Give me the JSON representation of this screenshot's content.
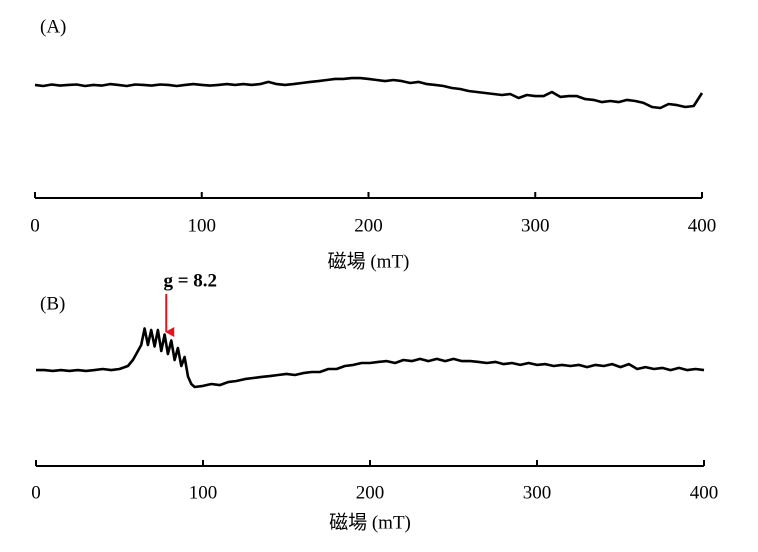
{
  "chart_data": [
    {
      "type": "line",
      "panel_label": "(A)",
      "xlabel": "磁場 (mT)",
      "xlim": [
        0,
        400
      ],
      "xticks": [
        0,
        100,
        200,
        300,
        400
      ],
      "ylim": [
        0,
        100
      ],
      "color": "#000000",
      "x": [
        0,
        5,
        10,
        15,
        20,
        25,
        30,
        35,
        40,
        45,
        50,
        55,
        60,
        65,
        70,
        75,
        80,
        85,
        90,
        95,
        100,
        105,
        110,
        115,
        120,
        125,
        130,
        135,
        140,
        145,
        150,
        155,
        160,
        165,
        170,
        175,
        180,
        185,
        190,
        195,
        200,
        205,
        210,
        215,
        220,
        225,
        230,
        235,
        240,
        245,
        250,
        255,
        260,
        265,
        270,
        275,
        280,
        285,
        290,
        295,
        300,
        305,
        310,
        315,
        320,
        325,
        330,
        335,
        340,
        345,
        350,
        355,
        360,
        365,
        370,
        375,
        380,
        385,
        390,
        395,
        400
      ],
      "values": [
        66.7,
        66,
        67,
        66.3,
        66.7,
        67,
        66,
        66.7,
        66.3,
        67.3,
        66.7,
        66,
        67,
        66.7,
        66.3,
        67,
        66.7,
        66,
        66.7,
        67.3,
        66.7,
        66.3,
        66.7,
        67.3,
        66.7,
        67.3,
        66.7,
        67.3,
        68.7,
        67.3,
        66.7,
        67.3,
        68,
        68.7,
        69.3,
        70,
        70.7,
        70.7,
        71.3,
        71.3,
        70.7,
        70,
        69.3,
        70,
        69.3,
        68,
        68.7,
        67.3,
        66.7,
        66,
        64.7,
        64,
        62.7,
        62,
        61.3,
        60.7,
        60,
        60.7,
        58,
        60,
        59.3,
        59.3,
        62,
        58.7,
        59.3,
        59.3,
        57.3,
        56.7,
        55.3,
        56,
        55.3,
        56.7,
        56,
        54.7,
        52,
        51.3,
        54,
        53.3,
        52,
        52.7,
        61.3
      ]
    },
    {
      "type": "line",
      "panel_label": "(B)",
      "xlabel": "磁場 (mT)",
      "xlim": [
        0,
        400
      ],
      "xticks": [
        0,
        100,
        200,
        300,
        400
      ],
      "ylim": [
        0,
        100
      ],
      "color": "#000000",
      "annotation": {
        "text": "g = 8.2",
        "x": 78,
        "color": "#e8121a"
      },
      "x": [
        0,
        5,
        10,
        15,
        20,
        25,
        30,
        35,
        40,
        45,
        50,
        55,
        58,
        61,
        63,
        65,
        67,
        69,
        71,
        73,
        75,
        77,
        79,
        81,
        83,
        85,
        87,
        89,
        91,
        93,
        95,
        100,
        105,
        110,
        115,
        120,
        125,
        130,
        135,
        140,
        145,
        150,
        155,
        160,
        165,
        170,
        175,
        180,
        185,
        190,
        195,
        200,
        205,
        210,
        215,
        220,
        225,
        230,
        235,
        240,
        245,
        250,
        255,
        260,
        265,
        270,
        275,
        280,
        285,
        290,
        295,
        300,
        305,
        310,
        315,
        320,
        325,
        330,
        335,
        340,
        345,
        350,
        355,
        360,
        365,
        370,
        375,
        380,
        385,
        390,
        395,
        400
      ],
      "values": [
        53.3,
        53.3,
        52.7,
        53.3,
        52.7,
        53.3,
        52.7,
        53.3,
        54,
        53.3,
        54,
        56,
        60,
        66,
        70,
        81,
        70,
        80,
        69,
        80,
        66,
        77,
        64,
        73,
        60,
        68,
        56,
        62,
        49,
        44,
        42,
        42.7,
        44,
        43.3,
        45.3,
        46,
        47.3,
        48,
        48.7,
        49.3,
        50,
        50.7,
        50,
        51.3,
        52,
        52,
        54,
        54,
        56,
        56.7,
        58,
        58,
        58.7,
        59.3,
        58,
        60,
        59.3,
        60.7,
        59.3,
        60.7,
        59.3,
        60.7,
        59.3,
        59.3,
        58.7,
        58,
        58.7,
        57.3,
        58,
        56.7,
        58,
        56.7,
        57.3,
        56,
        56.7,
        56,
        56.7,
        55.3,
        56.7,
        56,
        57.3,
        55.3,
        57.3,
        54,
        55.3,
        54,
        54.7,
        53.3,
        54.7,
        53.3,
        54,
        53.3
      ]
    }
  ]
}
